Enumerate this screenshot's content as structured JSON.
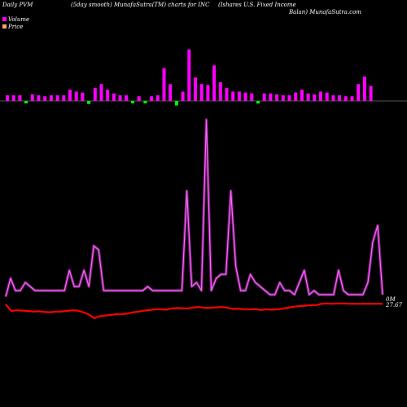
{
  "header": {
    "left": "Daily PVM",
    "middle": "(5day smooth) MunafaSutra(TM) charts for INC",
    "right_line1": "(Ishares U.S. Fixed Income",
    "right_line2": "Balan) MunafaSutra.com"
  },
  "legend": {
    "volume": "Volume",
    "price": "Price"
  },
  "colors": {
    "background": "#000000",
    "volume_up": "#ff00ff",
    "volume_down": "#00ff00",
    "volume_line": "#cc33cc",
    "price_line": "#ff0000",
    "axis_line": "#555555"
  },
  "chart_data": {
    "type": "bar",
    "y_labels": [
      "0M",
      "27.67"
    ],
    "volume_bars": [
      {
        "value": 6,
        "dir": "up"
      },
      {
        "value": 6,
        "dir": "up"
      },
      {
        "value": 6,
        "dir": "up"
      },
      {
        "value": 6,
        "dir": "down"
      },
      {
        "value": 7,
        "dir": "up"
      },
      {
        "value": 6,
        "dir": "up"
      },
      {
        "value": 5,
        "dir": "up"
      },
      {
        "value": 6,
        "dir": "up"
      },
      {
        "value": 6,
        "dir": "up"
      },
      {
        "value": 6,
        "dir": "up"
      },
      {
        "value": 12,
        "dir": "up"
      },
      {
        "value": 10,
        "dir": "up"
      },
      {
        "value": 9,
        "dir": "up"
      },
      {
        "value": 8,
        "dir": "down"
      },
      {
        "value": 14,
        "dir": "up"
      },
      {
        "value": 18,
        "dir": "up"
      },
      {
        "value": 12,
        "dir": "up"
      },
      {
        "value": 8,
        "dir": "up"
      },
      {
        "value": 6,
        "dir": "up"
      },
      {
        "value": 6,
        "dir": "up"
      },
      {
        "value": 6,
        "dir": "down"
      },
      {
        "value": 5,
        "dir": "up"
      },
      {
        "value": 6,
        "dir": "down"
      },
      {
        "value": 5,
        "dir": "up"
      },
      {
        "value": 6,
        "dir": "up"
      },
      {
        "value": 35,
        "dir": "up"
      },
      {
        "value": 18,
        "dir": "up"
      },
      {
        "value": 12,
        "dir": "down"
      },
      {
        "value": 10,
        "dir": "up"
      },
      {
        "value": 55,
        "dir": "up"
      },
      {
        "value": 25,
        "dir": "up"
      },
      {
        "value": 18,
        "dir": "up"
      },
      {
        "value": 17,
        "dir": "up"
      },
      {
        "value": 38,
        "dir": "up"
      },
      {
        "value": 20,
        "dir": "up"
      },
      {
        "value": 14,
        "dir": "up"
      },
      {
        "value": 10,
        "dir": "up"
      },
      {
        "value": 10,
        "dir": "up"
      },
      {
        "value": 9,
        "dir": "up"
      },
      {
        "value": 8,
        "dir": "up"
      },
      {
        "value": 7,
        "dir": "down"
      },
      {
        "value": 8,
        "dir": "up"
      },
      {
        "value": 8,
        "dir": "up"
      },
      {
        "value": 7,
        "dir": "up"
      },
      {
        "value": 6,
        "dir": "up"
      },
      {
        "value": 6,
        "dir": "up"
      },
      {
        "value": 9,
        "dir": "up"
      },
      {
        "value": 12,
        "dir": "up"
      },
      {
        "value": 8,
        "dir": "up"
      },
      {
        "value": 7,
        "dir": "up"
      },
      {
        "value": 10,
        "dir": "up"
      },
      {
        "value": 9,
        "dir": "up"
      },
      {
        "value": 6,
        "dir": "up"
      },
      {
        "value": 6,
        "dir": "up"
      },
      {
        "value": 5,
        "dir": "up"
      },
      {
        "value": 5,
        "dir": "up"
      },
      {
        "value": 18,
        "dir": "up"
      },
      {
        "value": 26,
        "dir": "up"
      },
      {
        "value": 16,
        "dir": "up"
      }
    ],
    "volume_line": [
      3,
      12,
      6,
      6,
      10,
      8,
      6,
      6,
      6,
      6,
      6,
      6,
      6,
      16,
      8,
      8,
      16,
      8,
      28,
      26,
      6,
      6,
      6,
      6,
      6,
      6,
      6,
      6,
      6,
      8,
      6,
      6,
      6,
      6,
      6,
      6,
      6,
      55,
      8,
      10,
      6,
      90,
      6,
      12,
      14,
      14,
      55,
      18,
      6,
      6,
      14,
      10,
      8,
      6,
      4,
      4,
      10,
      6,
      6,
      4,
      10,
      16,
      4,
      6,
      4,
      4,
      4,
      4,
      16,
      6,
      4,
      4,
      4,
      4,
      10,
      30,
      38,
      4
    ],
    "price_line": [
      4,
      2,
      2.2,
      2.1,
      2,
      1.8,
      1.9,
      1.7,
      1.6,
      1.8,
      1.8,
      2,
      2.2,
      2.1,
      1.6,
      0.9,
      -0.2,
      0.4,
      0.6,
      0.8,
      1,
      1,
      1.2,
      1.6,
      1.8,
      2.1,
      2.3,
      2.5,
      2.5,
      2.4,
      2.8,
      2.9,
      2.8,
      2.8,
      3.1,
      3.2,
      2.9,
      3,
      3.1,
      3.2,
      3,
      2.6,
      2.7,
      2.5,
      2.5,
      2.6,
      2.3,
      2.5,
      2.4,
      2.5,
      2.7,
      3,
      3.3,
      3.5,
      3.6,
      3.8,
      3.8,
      4.2,
      4.3,
      4.2,
      4.3,
      4.3,
      4.2,
      4.2,
      4.2,
      4.2,
      4.2,
      4.2,
      4.2
    ]
  }
}
